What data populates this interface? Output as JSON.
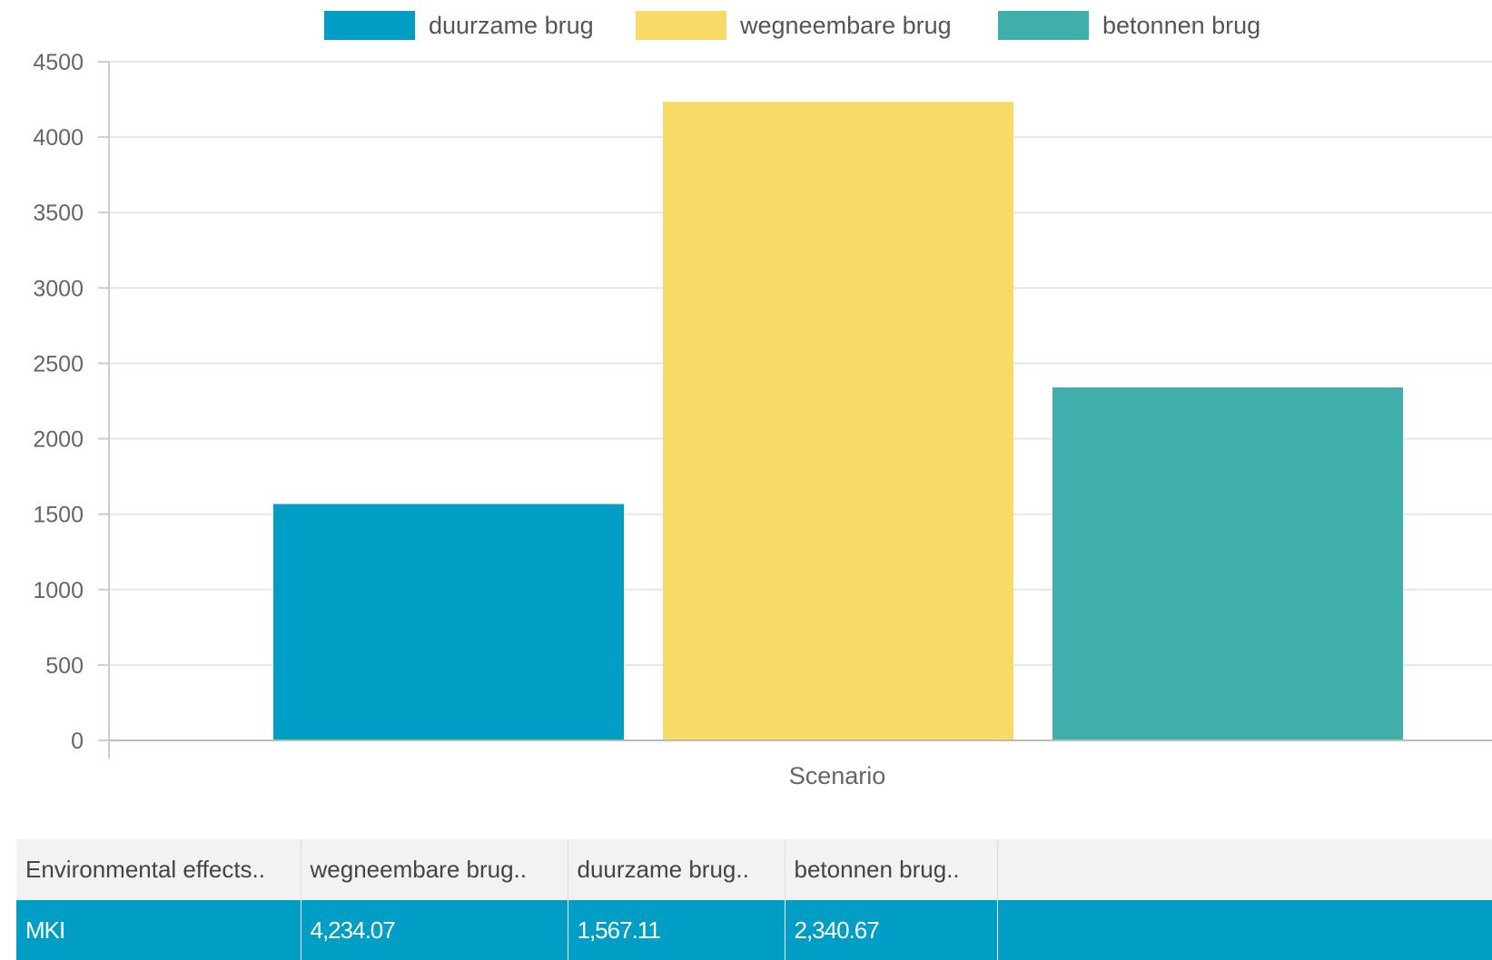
{
  "chart_data": {
    "type": "bar",
    "categories": [
      "Scenario"
    ],
    "series": [
      {
        "name": "duurzame brug",
        "values": [
          1567.11
        ],
        "color": "#009dc4"
      },
      {
        "name": "wegneembare brug",
        "values": [
          4234.07
        ],
        "color": "#f8da68"
      },
      {
        "name": "betonnen brug",
        "values": [
          2340.67
        ],
        "color": "#40aeab"
      }
    ],
    "xlabel": "Scenario",
    "ylabel": "",
    "ylim": [
      0,
      4500
    ],
    "yticks": [
      0,
      500,
      1000,
      1500,
      2000,
      2500,
      3000,
      3500,
      4000,
      4500
    ],
    "grid": true,
    "legend_position": "top"
  },
  "table": {
    "headers": [
      "Environmental effects..",
      "wegneembare brug..",
      "duurzame brug..",
      "betonnen brug..",
      ""
    ],
    "rows": [
      [
        "MKI",
        "4,234.07",
        "1,567.11",
        "2,340.67",
        ""
      ]
    ]
  }
}
